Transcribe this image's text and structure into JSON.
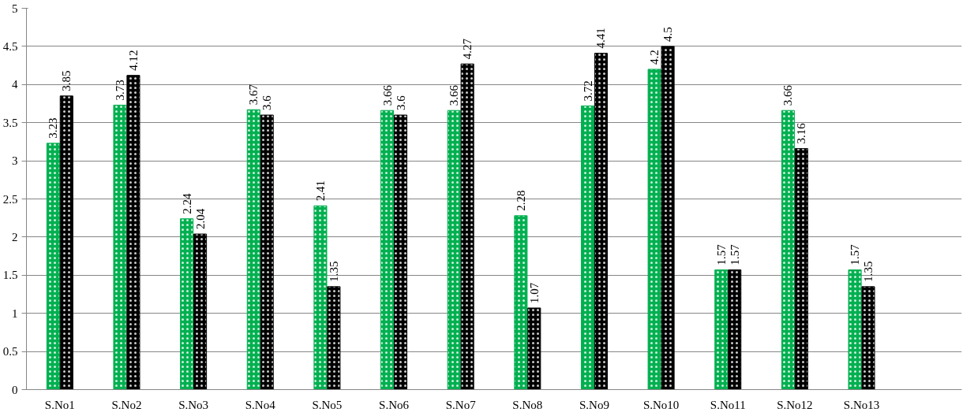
{
  "chart_data": {
    "type": "bar",
    "categories": [
      "S.No1",
      "S.No2",
      "S.No3",
      "S.No4",
      "S.No5",
      "S.No6",
      "S.No7",
      "S.No8",
      "S.No9",
      "S.No10",
      "S.No11",
      "S.No12",
      "S.No13",
      null
    ],
    "series": [
      {
        "color": "#00b050",
        "values": [
          3.23,
          3.73,
          2.24,
          3.67,
          2.41,
          3.66,
          3.66,
          2.28,
          3.72,
          4.2,
          1.57,
          3.66,
          1.57,
          null
        ]
      },
      {
        "color": "#000000",
        "values": [
          3.85,
          4.12,
          2.04,
          3.6,
          1.35,
          3.6,
          4.27,
          1.07,
          4.41,
          4.5,
          1.57,
          3.16,
          1.35,
          null
        ]
      }
    ],
    "ylim": [
      0,
      5
    ],
    "yticks": [
      0,
      0.5,
      1,
      1.5,
      2,
      2.5,
      3,
      3.5,
      4,
      4.5,
      5
    ],
    "grid": "y",
    "data_labels": true
  }
}
